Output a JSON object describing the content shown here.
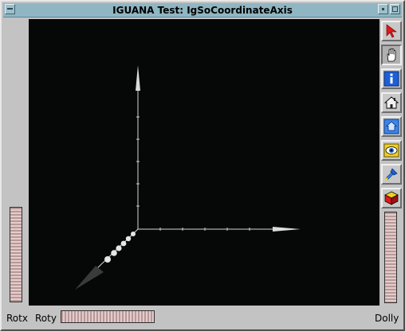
{
  "window": {
    "title": "IGUANA Test: IgSoCoordinateAxis"
  },
  "tools": [
    {
      "name": "select-arrow-icon",
      "active": false
    },
    {
      "name": "hand-view-icon",
      "active": true
    },
    {
      "name": "info-icon",
      "active": false
    },
    {
      "name": "home-icon",
      "active": false
    },
    {
      "name": "set-home-icon",
      "active": false
    },
    {
      "name": "view-all-eye-icon",
      "active": false
    },
    {
      "name": "seek-flashlight-icon",
      "active": false
    },
    {
      "name": "projection-cube-icon",
      "active": false
    }
  ],
  "thumbwheels": {
    "rotx_label": "Rotx",
    "roty_label": "Roty",
    "dolly_label": "Dolly"
  },
  "colors": {
    "titlebar": "#8fb6c2",
    "viewer_background": "#050807",
    "wheel_light": "#e3cdcd",
    "wheel_dark": "#b99898"
  }
}
